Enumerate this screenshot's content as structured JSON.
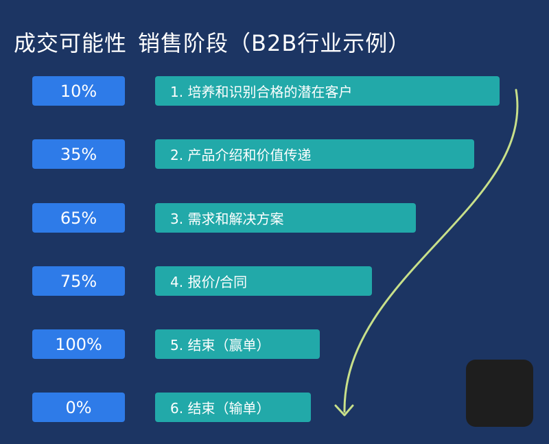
{
  "title": {
    "part1": "成交可能性",
    "part2": "销售阶段（B2B行业示例）"
  },
  "stages": [
    {
      "probability": "10%",
      "label": "1. 培养和识别合格的潜在客户"
    },
    {
      "probability": "35%",
      "label": "2. 产品介绍和价值传递"
    },
    {
      "probability": "65%",
      "label": "3. 需求和解决方案"
    },
    {
      "probability": "75%",
      "label": "4. 报价/合同"
    },
    {
      "probability": "100%",
      "label": "5. 结束（赢单）"
    },
    {
      "probability": "0%",
      "label": "6. 结束（输单）"
    }
  ],
  "colors": {
    "background": "#1c3563",
    "probability_box": "#2e7be8",
    "stage_box": "#22a9a9",
    "arrow": "#c8e08a"
  }
}
